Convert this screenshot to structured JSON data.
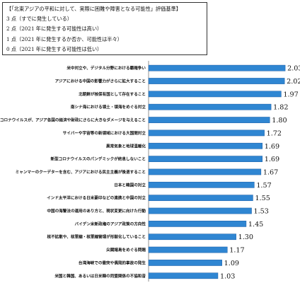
{
  "legend": {
    "title": "【「北東アジアの平和に対して、実際に困難や障害となる可能性」評価基準】",
    "lines": [
      "3 点（すでに発生している）",
      "2 点（2021 年に発生する可能性は高い）",
      "1 点（2021 年に発生するか否か、可能性は半々）",
      "0 点（2021 年に発生する可能性は低い）"
    ]
  },
  "colors": {
    "bar": "#2f86d2",
    "bar_edge": "#1f5fa6",
    "axis": "#777777"
  },
  "chart_data": {
    "type": "bar",
    "orientation": "horizontal",
    "title": "",
    "xlabel": "",
    "ylabel": "",
    "xlim": [
      0,
      2.05
    ],
    "grid": false,
    "categories": [
      "米中対立や、デジタル分野における覇権争い",
      "アジアにおける中国の影響力がさらに拡大すること",
      "北朝鮮が核保有国として存在すること",
      "南シナ海における領土・領海をめぐる対立",
      "新型コロナウイルスが、アジア各国の経済や財政にさらに大きなダメージを与えること",
      "サイバーや宇宙等の新領域における大国間対立",
      "異常気象と地球温暖化",
      "新型コロナウイルスのパンデミックが終息しないこと",
      "ミャンマーのクーデターを含む、アジアにおける民主主義が後退すること",
      "日本と韓国の対立",
      "インド太平洋における日米豪印などの連携と中国の対立",
      "中国の海警法の運用のあり方と、現状変更に向けた行動",
      "バイデン米新政権のアジア政策の方向性",
      "核不拡散や、核軍縮・核軍縮管理が形骸化していること",
      "尖閣諸島をめぐる問題",
      "台湾海峡での衝突や偶発的事故の発生",
      "米国と韓国、あるいは日米韓の同盟関係の不協和音"
    ],
    "values": [
      2.03,
      2.02,
      1.97,
      1.82,
      1.8,
      1.72,
      1.69,
      1.69,
      1.67,
      1.57,
      1.55,
      1.53,
      1.45,
      1.3,
      1.17,
      1.09,
      1.03
    ],
    "value_labels": [
      "2.03",
      "2.02",
      "1.97",
      "1.82",
      "1.80",
      "1.72",
      "1.69",
      "1.69",
      "1.67",
      "1.57",
      "1.55",
      "1.53",
      "1.45",
      "1.30",
      "1.17",
      "1.09",
      "1.03"
    ]
  }
}
